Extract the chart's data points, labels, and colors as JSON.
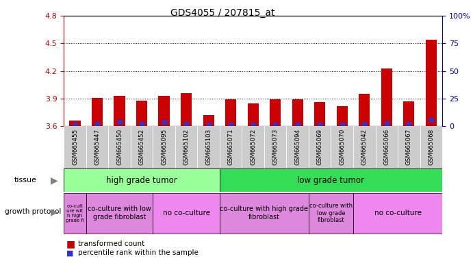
{
  "title": "GDS4055 / 207815_at",
  "samples": [
    "GSM665455",
    "GSM665447",
    "GSM665450",
    "GSM665452",
    "GSM665095",
    "GSM665102",
    "GSM665103",
    "GSM665071",
    "GSM665072",
    "GSM665073",
    "GSM665094",
    "GSM665069",
    "GSM665070",
    "GSM665042",
    "GSM665066",
    "GSM665067",
    "GSM665068"
  ],
  "red_values": [
    3.66,
    3.91,
    3.93,
    3.88,
    3.93,
    3.96,
    3.72,
    3.89,
    3.85,
    3.89,
    3.89,
    3.86,
    3.82,
    3.95,
    4.23,
    3.87,
    4.54
  ],
  "blue_values": [
    3.618,
    3.628,
    3.648,
    3.628,
    3.648,
    3.628,
    3.618,
    3.618,
    3.618,
    3.618,
    3.618,
    3.618,
    3.618,
    3.628,
    3.63,
    3.628,
    3.668
  ],
  "ymin": 3.6,
  "ymax": 4.8,
  "yticks_left": [
    3.6,
    3.9,
    4.2,
    4.5,
    4.8
  ],
  "yticks_right": [
    0,
    25,
    50,
    75,
    100
  ],
  "bar_color": "#cc0000",
  "blue_color": "#3333cc",
  "left_tick_color": "#cc0000",
  "right_tick_color": "#0000cc",
  "bg_color": "#ffffff",
  "xticklabel_bg": "#cccccc",
  "tissue_high_color": "#99ff99",
  "tissue_low_color": "#33dd55",
  "proto_purple": "#dd88dd",
  "proto_pink": "#ee88ee"
}
